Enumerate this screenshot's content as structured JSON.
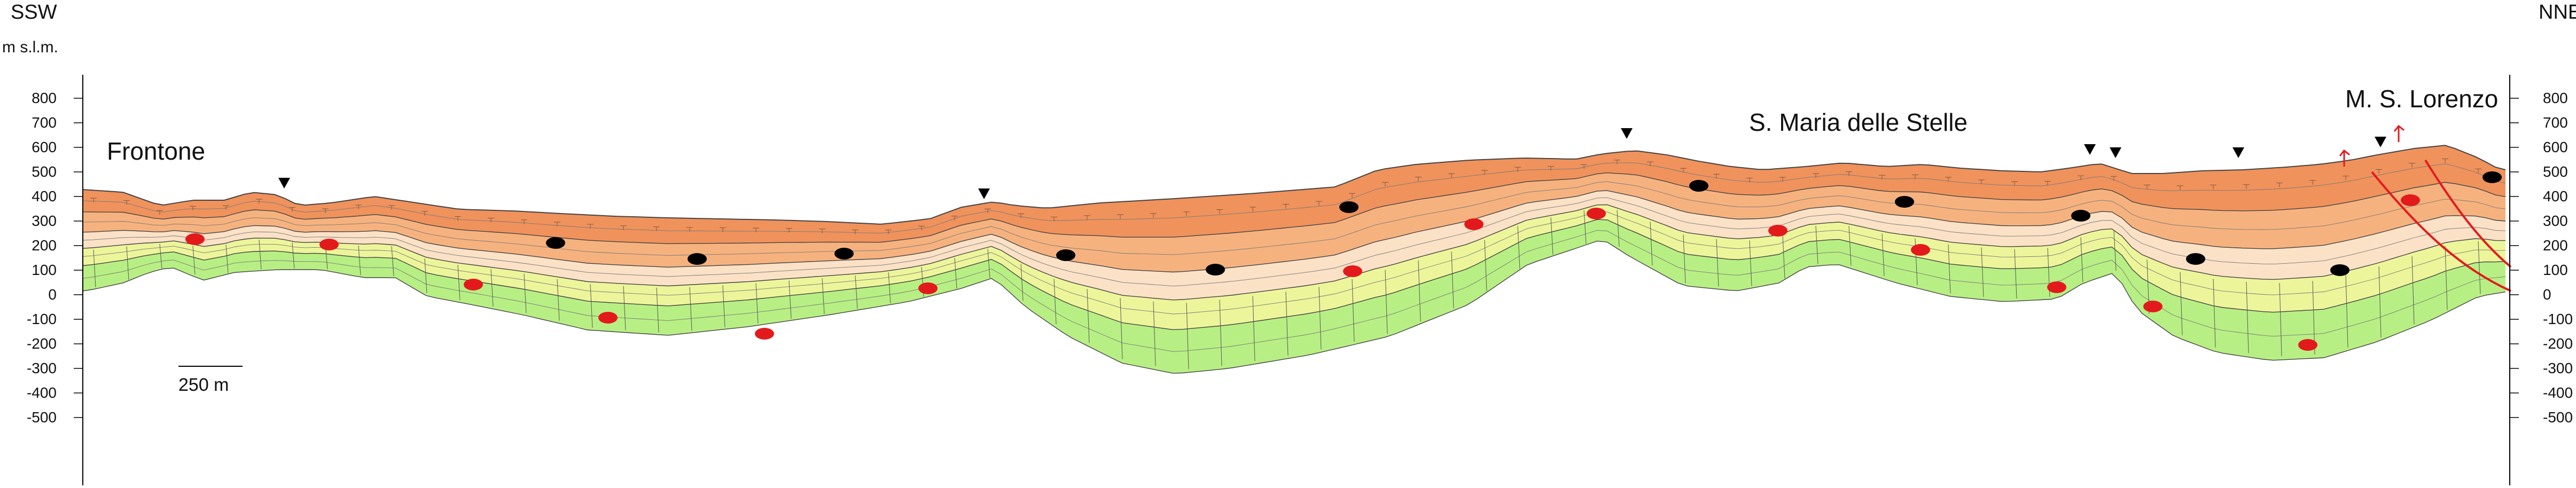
{
  "orientation": {
    "left": "SSW",
    "right": "NNE"
  },
  "axis": {
    "unit_label": "m s.l.m.",
    "ticks": [
      "800",
      "700",
      "600",
      "500",
      "400",
      "300",
      "200",
      "100",
      "0",
      "-100",
      "-200",
      "-300",
      "-400",
      "-500"
    ]
  },
  "places": {
    "frontone": "Frontone",
    "santa_maria": "S. Maria delle Stelle",
    "san_lorenzo": "M. S. Lorenzo"
  },
  "scale_bar": {
    "label": "250 m"
  },
  "colors": {
    "layer_top_orange": "#f0925c",
    "layer_mid_orange": "#f6b27e",
    "layer_pale": "#fbe1c6",
    "layer_yellow": "#edf59a",
    "layer_green": "#b8ef84",
    "fault": "#e31a1c",
    "black_lens": "#000000",
    "red_lens": "#e31a1c"
  },
  "symbols": {
    "triangle_marker": "triangle-down-icon",
    "fault_arrow": "arrow-up-icon"
  }
}
